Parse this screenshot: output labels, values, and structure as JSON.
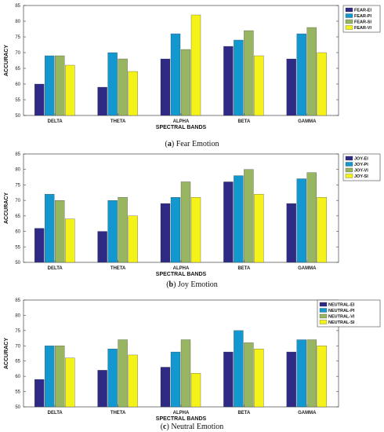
{
  "chart_data": [
    {
      "type": "bar",
      "caption_letter": "a",
      "caption_text": "Fear Emotion",
      "xlabel": "SPECTRAL BANDS",
      "ylabel": "ACCURACY",
      "categories": [
        "DELTA",
        "THETA",
        "ALPHA",
        "BETA",
        "GAMMA"
      ],
      "ylim": [
        50,
        85
      ],
      "yticks": [
        50,
        55,
        60,
        65,
        70,
        75,
        80,
        85
      ],
      "legend_position": "top-right",
      "series": [
        {
          "name": "FEAR-EI",
          "color": "#2e2a85",
          "values": [
            60,
            59,
            68,
            72,
            68
          ]
        },
        {
          "name": "FEAR-PI",
          "color": "#1397cf",
          "values": [
            69,
            70,
            76,
            74,
            76
          ]
        },
        {
          "name": "FEAR-SI",
          "color": "#98b562",
          "values": [
            69,
            68,
            71,
            77,
            78
          ]
        },
        {
          "name": "FEAR-VI",
          "color": "#f5f219",
          "values": [
            66,
            64,
            82,
            69,
            70
          ]
        }
      ]
    },
    {
      "type": "bar",
      "caption_letter": "b",
      "caption_text": "Joy Emotion",
      "xlabel": "SPECTRAL BANDS",
      "ylabel": "ACCURACY",
      "categories": [
        "DELTA",
        "THETA",
        "ALPHA",
        "BETA",
        "GAMMA"
      ],
      "ylim": [
        50,
        85
      ],
      "yticks": [
        50,
        55,
        60,
        65,
        70,
        75,
        80,
        85
      ],
      "legend_position": "top-right",
      "series": [
        {
          "name": "JOY-EI",
          "color": "#2e2a85",
          "values": [
            61,
            60,
            69,
            76,
            69
          ]
        },
        {
          "name": "JOY-PI",
          "color": "#1397cf",
          "values": [
            72,
            70,
            71,
            78,
            77
          ]
        },
        {
          "name": "JOY-VI",
          "color": "#98b562",
          "values": [
            70,
            71,
            76,
            80,
            79
          ]
        },
        {
          "name": "JOY-SI",
          "color": "#f5f219",
          "values": [
            64,
            65,
            71,
            72,
            71
          ]
        }
      ]
    },
    {
      "type": "bar",
      "caption_letter": "c",
      "caption_text": "Neutral Emotion",
      "xlabel": "SPECTRAL BANDS",
      "ylabel": "ACCURACY",
      "categories": [
        "DELTA",
        "THETA",
        "ALPHA",
        "BETA",
        "GAMMA"
      ],
      "ylim": [
        50,
        85
      ],
      "yticks": [
        50,
        55,
        60,
        65,
        70,
        75,
        80,
        85
      ],
      "legend_position": "top-right",
      "series": [
        {
          "name": "NEUTRAL-EI",
          "color": "#2e2a85",
          "values": [
            59,
            62,
            63,
            68,
            68
          ]
        },
        {
          "name": "NEUTRAL-PI",
          "color": "#1397cf",
          "values": [
            70,
            69,
            68,
            75,
            72
          ]
        },
        {
          "name": "NEUTRAL-VI",
          "color": "#98b562",
          "values": [
            70,
            72,
            72,
            71,
            72
          ]
        },
        {
          "name": "NEUTRAL-SI",
          "color": "#f5f219",
          "values": [
            66,
            67,
            61,
            69,
            70
          ]
        }
      ]
    }
  ]
}
